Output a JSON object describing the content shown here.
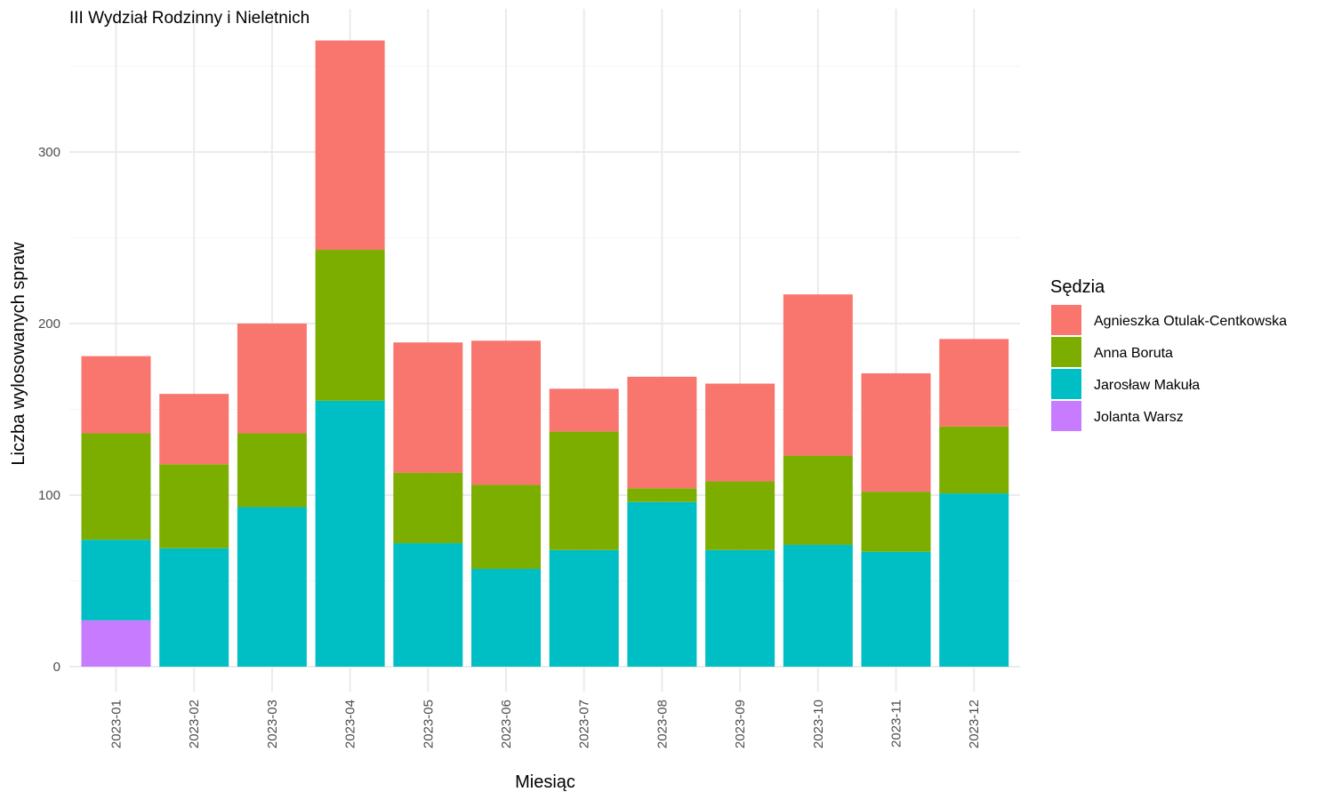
{
  "chart_data": {
    "type": "bar",
    "stacked": true,
    "title": "III Wydział Rodzinny i Nieletnich",
    "xlabel": "Miesiąc",
    "ylabel": "Liczba wylosowanych spraw",
    "ylim": [
      0,
      380
    ],
    "yticks": [
      0,
      100,
      200,
      300
    ],
    "grid": true,
    "legend_title": "Sędzia",
    "legend_position": "right",
    "categories": [
      "2023-01",
      "2023-02",
      "2023-03",
      "2023-04",
      "2023-05",
      "2023-06",
      "2023-07",
      "2023-08",
      "2023-09",
      "2023-10",
      "2023-11",
      "2023-12"
    ],
    "series": [
      {
        "name": "Agnieszka Otulak-Centkowska",
        "color": "#F8766D",
        "values": [
          45,
          41,
          64,
          122,
          76,
          84,
          25,
          65,
          57,
          94,
          69,
          51
        ]
      },
      {
        "name": "Anna Boruta",
        "color": "#7CAE00",
        "values": [
          62,
          49,
          43,
          88,
          41,
          49,
          69,
          8,
          40,
          52,
          35,
          39
        ]
      },
      {
        "name": "Jarosław Makuła",
        "color": "#00BFC4",
        "values": [
          47,
          69,
          93,
          155,
          72,
          57,
          68,
          96,
          68,
          71,
          67,
          101
        ]
      },
      {
        "name": "Jolanta Warsz",
        "color": "#C77CFF",
        "values": [
          27,
          0,
          0,
          0,
          0,
          0,
          0,
          0,
          0,
          0,
          0,
          0
        ]
      }
    ],
    "stack_order_bottom_to_top": [
      "Jolanta Warsz",
      "Jarosław Makuła",
      "Anna Boruta",
      "Agnieszka Otulak-Centkowska"
    ]
  }
}
